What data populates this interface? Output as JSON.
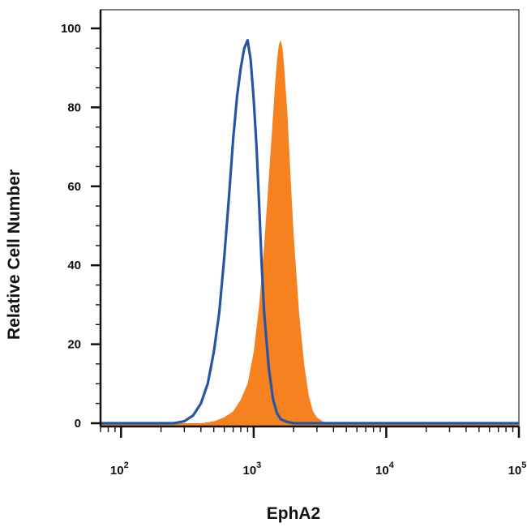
{
  "chart_data": {
    "type": "area",
    "title": "",
    "xlabel": "EphA2",
    "ylabel": "Relative Cell Number",
    "x_scale": "log",
    "xlim": [
      70,
      100000
    ],
    "ylim": [
      -1,
      100
    ],
    "grid": false,
    "legend": "none",
    "x_ticks": [
      {
        "base": "10",
        "exp": "2",
        "value": 100
      },
      {
        "base": "10",
        "exp": "3",
        "value": 1000
      },
      {
        "base": "10",
        "exp": "4",
        "value": 10000
      },
      {
        "base": "10",
        "exp": "5",
        "value": 100000
      }
    ],
    "y_ticks": [
      "0",
      "20",
      "40",
      "60",
      "80",
      "100"
    ],
    "y_tick_values": [
      0,
      20,
      40,
      60,
      80,
      100
    ],
    "series": [
      {
        "style": "filled",
        "color": "#f5821f",
        "x": [
          70,
          400,
          500,
          600,
          700,
          800,
          900,
          1000,
          1100,
          1200,
          1300,
          1400,
          1450,
          1500,
          1550,
          1600,
          1650,
          1700,
          1800,
          1900,
          2000,
          2200,
          2400,
          2600,
          2800,
          3000,
          3300,
          3600,
          4000,
          100000
        ],
        "y": [
          0,
          0,
          0.5,
          1.5,
          3,
          6,
          10,
          18,
          30,
          45,
          62,
          78,
          86,
          92,
          96,
          97,
          95,
          90,
          78,
          62,
          48,
          28,
          15,
          7,
          3,
          1.5,
          0.5,
          0.2,
          0,
          0
        ]
      },
      {
        "style": "line",
        "color": "#2456a5",
        "x": [
          70,
          250,
          300,
          350,
          400,
          450,
          500,
          550,
          600,
          650,
          700,
          750,
          800,
          850,
          900,
          950,
          1000,
          1050,
          1100,
          1150,
          1200,
          1300,
          1400,
          1500,
          1600,
          1800,
          2000,
          100000
        ],
        "y": [
          0,
          0,
          0.5,
          2,
          5,
          10,
          18,
          28,
          42,
          57,
          72,
          83,
          90,
          95,
          97,
          92,
          82,
          70,
          55,
          40,
          28,
          14,
          6,
          2.5,
          1,
          0.3,
          0,
          0
        ]
      }
    ]
  }
}
